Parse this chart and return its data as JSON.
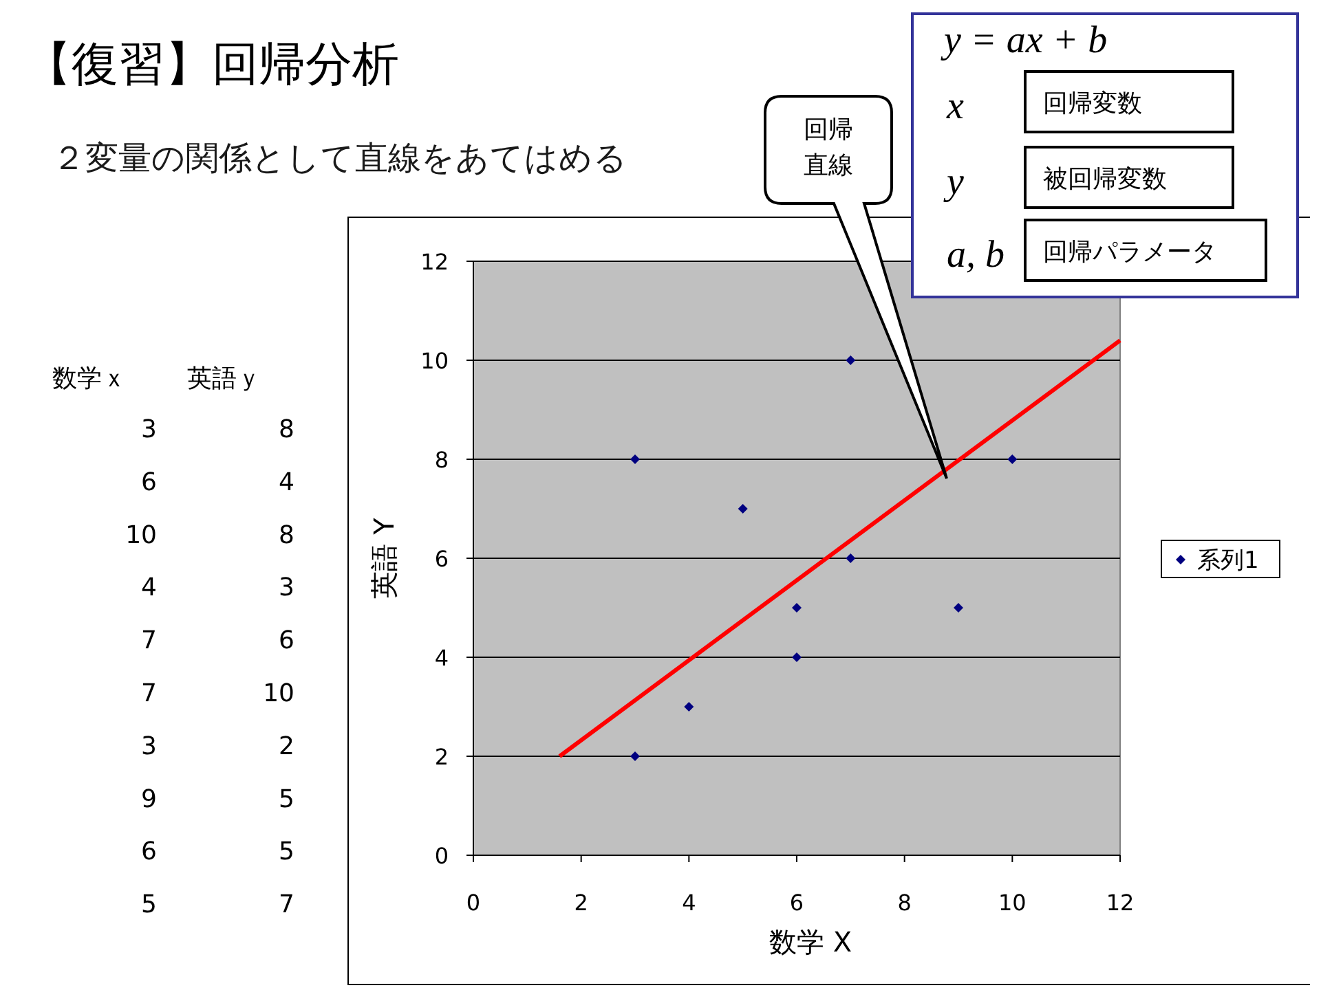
{
  "chart_data": [
    {
      "type": "other",
      "annotations": [
        "数学ｘ",
        "英語ｙ",
        "3",
        "8",
        "6",
        "4",
        "10",
        "8",
        "4",
        "3",
        "7",
        "6",
        "7",
        "10",
        "3",
        "2",
        "9",
        "5",
        "6",
        "5",
        "5",
        "7"
      ]
    },
    {
      "type": "scatter",
      "title": "【復習】回帰分析",
      "subtitle": "２変量の関係として直線をあてはめる",
      "xlabel": "数学 X",
      "ylabel": "英語 Y",
      "xlim": [
        0,
        12
      ],
      "xticks": [
        0,
        2,
        4,
        6,
        8,
        10,
        12
      ],
      "ylim": [
        0,
        12
      ],
      "yticks": [
        0,
        2,
        4,
        6,
        8,
        10,
        12
      ],
      "grid": "y",
      "legend": "right",
      "series": [
        {
          "name": "系列1",
          "type": "scatter",
          "marker": "diamond",
          "color": "#000080",
          "x": [
            3,
            6,
            10,
            4,
            7,
            7,
            3,
            9,
            6,
            5
          ],
          "values": [
            8,
            4,
            8,
            3,
            6,
            10,
            2,
            5,
            5,
            7
          ]
        },
        {
          "type": "line",
          "color": "#ff0000",
          "x": [
            1.6,
            12
          ],
          "values": [
            2,
            10.4
          ]
        }
      ],
      "annotations": [
        "回帰直線",
        "y = ax + b",
        "x",
        "回帰変数",
        "y",
        "被回帰変数",
        "a, b",
        "回帰パラメータ"
      ]
    }
  ]
}
